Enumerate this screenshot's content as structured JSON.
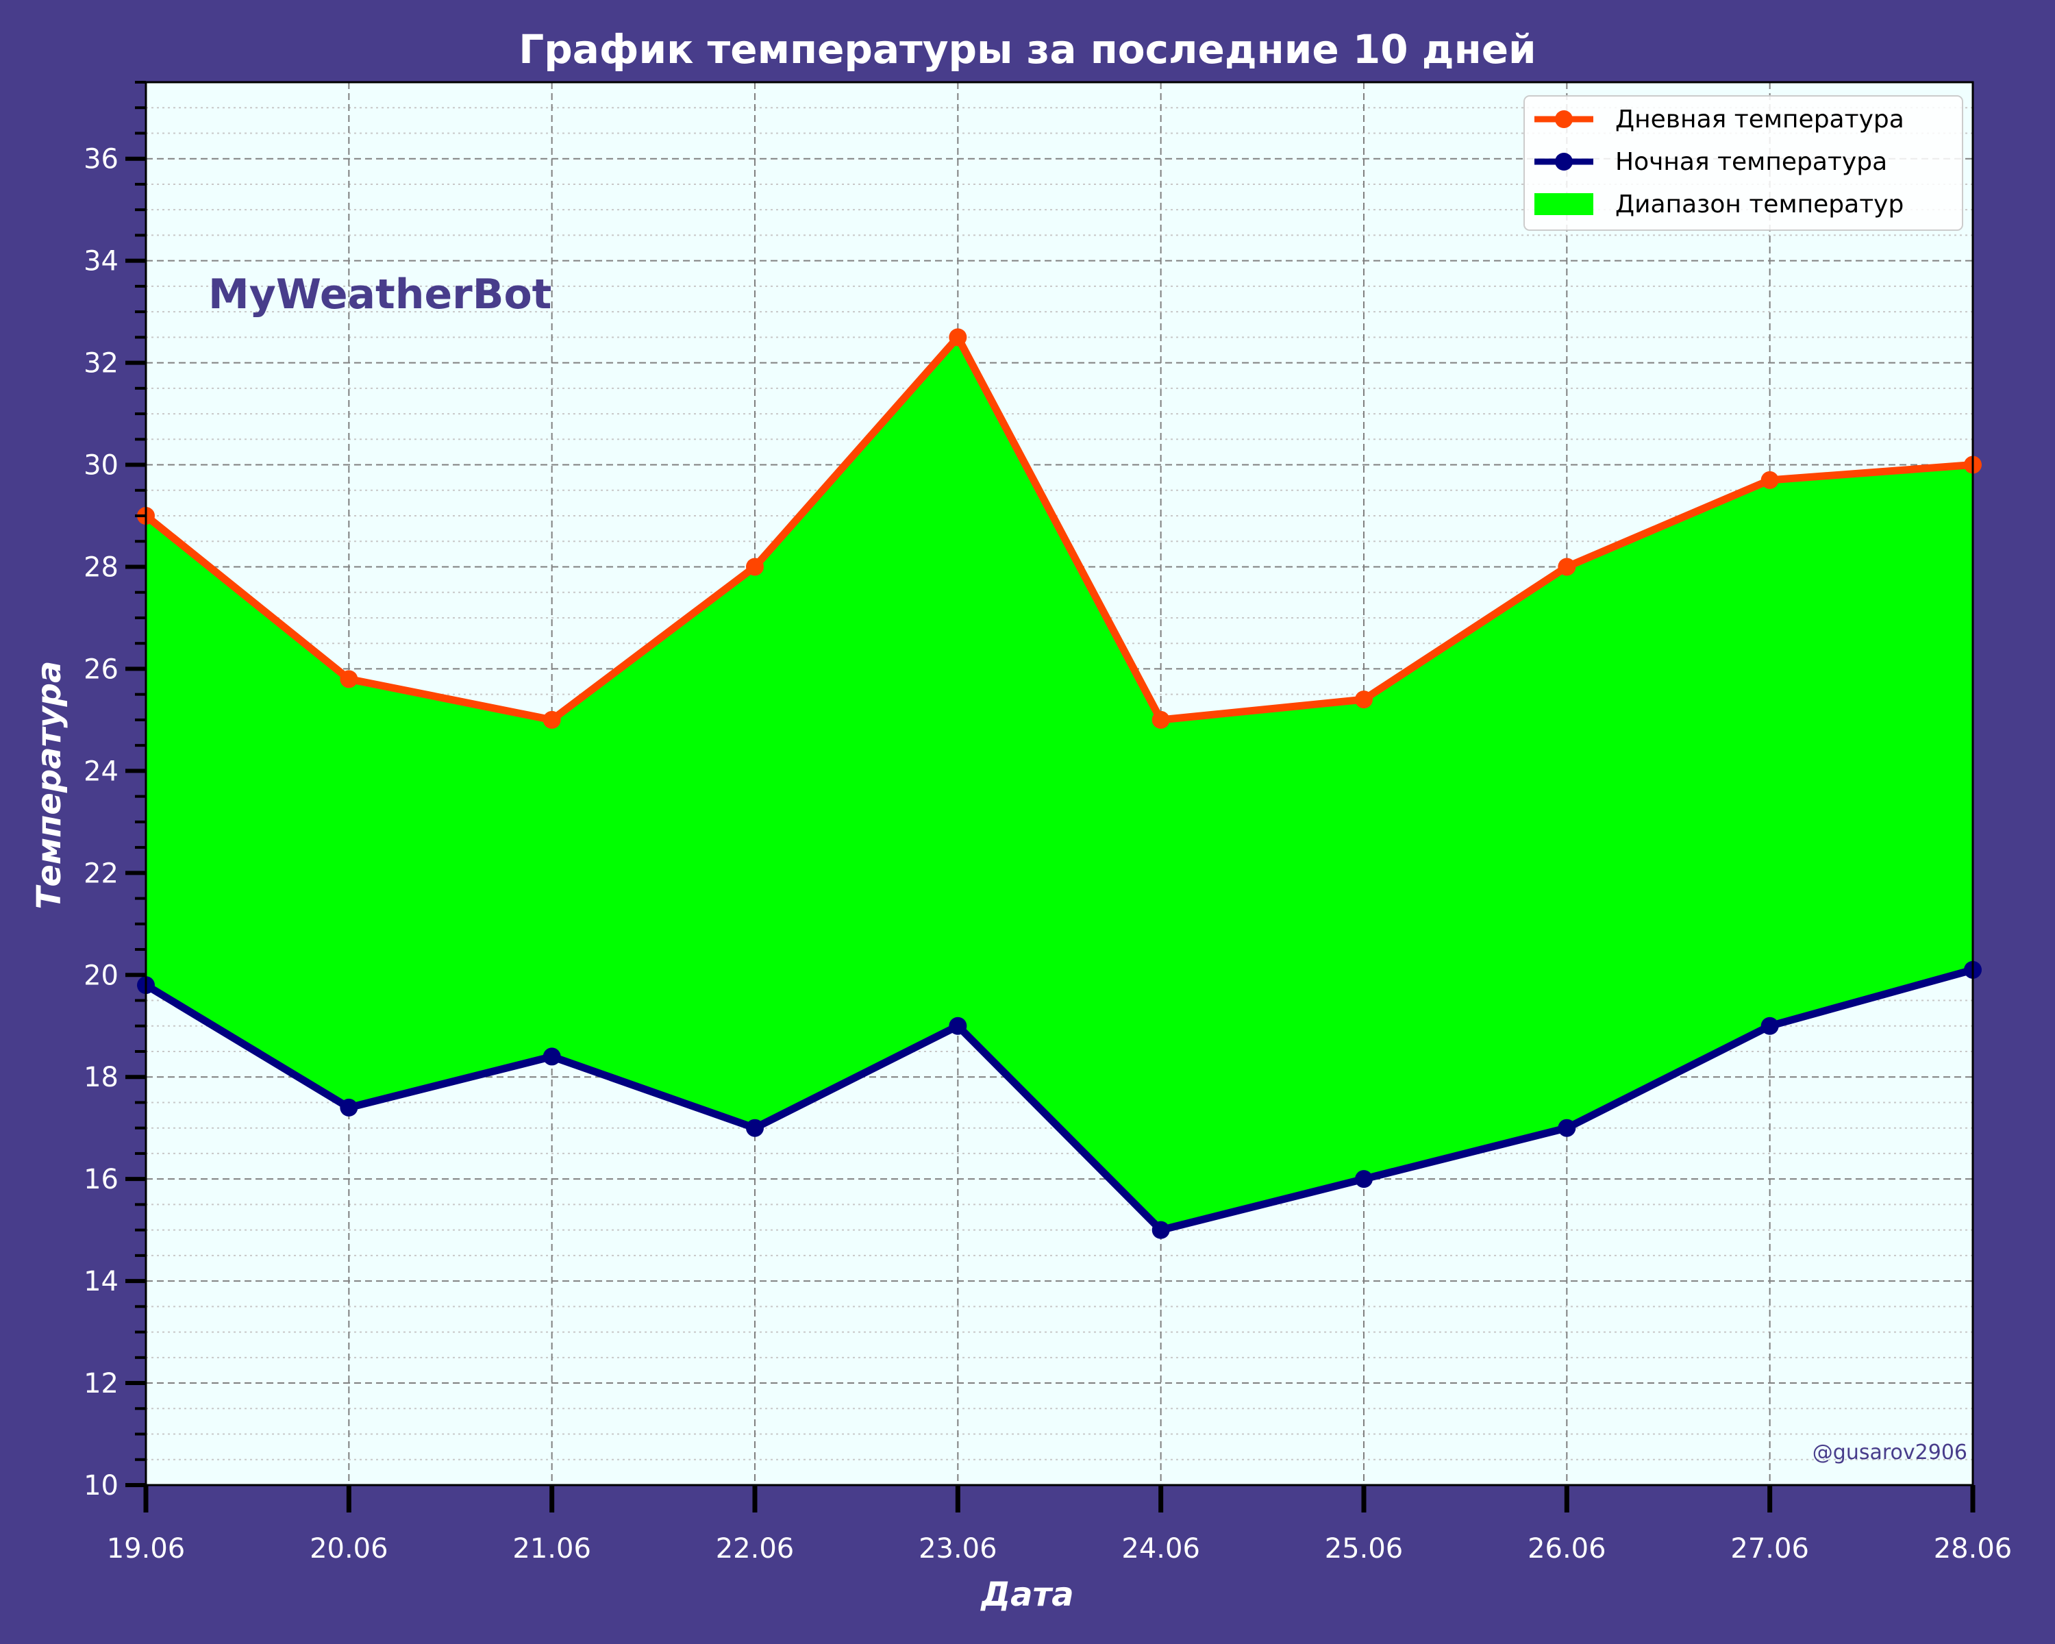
{
  "colors": {
    "figure_bg": "#483D8B",
    "plot_bg": "#F0FFFF",
    "day_line": "#FF4500",
    "night_line": "#000080",
    "fill": "#00FF00",
    "grid": "#808080",
    "minor_grid": "#C8C8C8",
    "text": "#FFFFFF",
    "watermark": "#483D8B"
  },
  "chart_data": {
    "type": "line",
    "title": "График температуры за последние 10 дней",
    "xlabel": "Дата",
    "ylabel": "Температура",
    "categories": [
      "19.06",
      "20.06",
      "21.06",
      "22.06",
      "23.06",
      "24.06",
      "25.06",
      "26.06",
      "27.06",
      "28.06"
    ],
    "ylim": [
      10,
      37.5
    ],
    "yticks": [
      "10",
      "12",
      "14",
      "16",
      "18",
      "20",
      "22",
      "24",
      "26",
      "28",
      "30",
      "32",
      "34",
      "36"
    ],
    "grid": true,
    "legend_position": "top-right",
    "series": [
      {
        "name": "Дневная температура",
        "kind": "line",
        "color": "#FF4500",
        "values": [
          29.0,
          25.8,
          25.0,
          28.0,
          32.5,
          25.0,
          25.4,
          28.0,
          29.7,
          30.0
        ]
      },
      {
        "name": "Ночная температура",
        "kind": "line",
        "color": "#000080",
        "values": [
          19.8,
          17.4,
          18.4,
          17.0,
          19.0,
          15.0,
          16.0,
          17.0,
          19.0,
          20.1
        ]
      }
    ],
    "fill_between": {
      "name": "Диапазон температур",
      "color": "#00FF00"
    },
    "annotations": {
      "watermark": "MyWeatherBot",
      "credit": "@gusarov2906"
    }
  }
}
